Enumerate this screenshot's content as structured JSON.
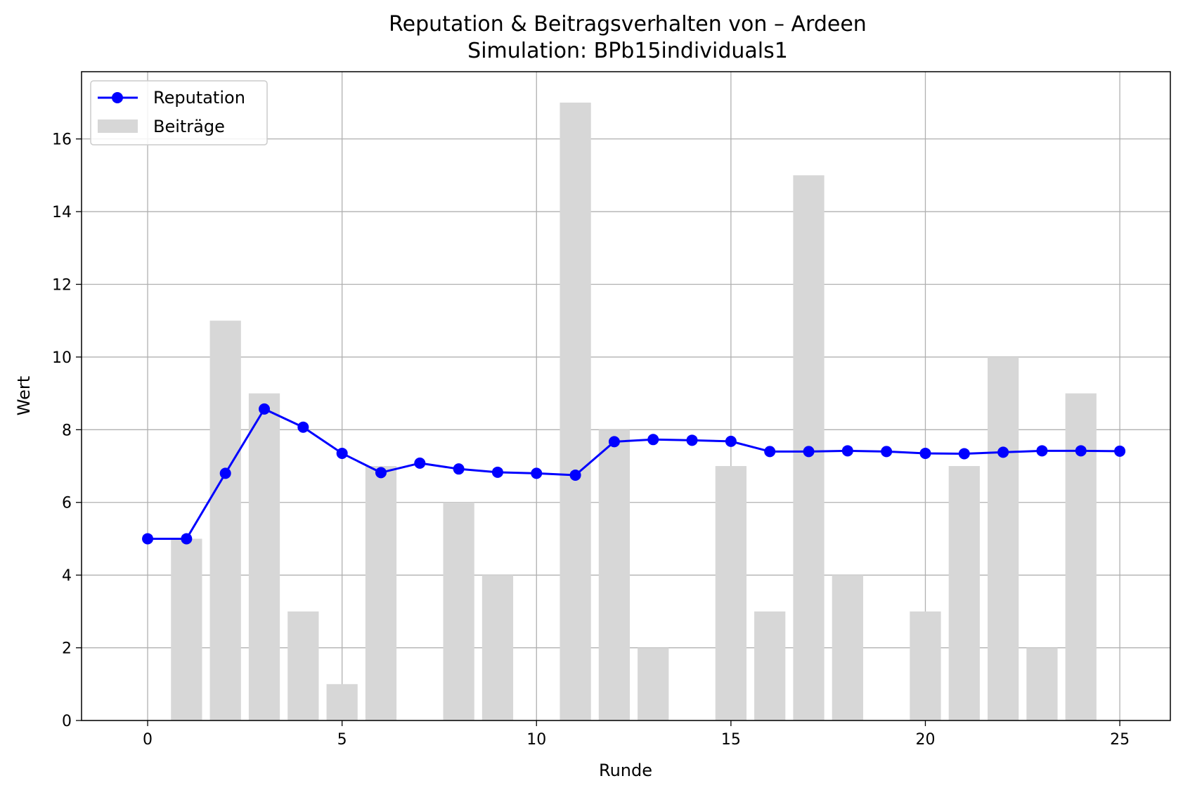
{
  "chart_data": {
    "type": "bar+line",
    "title": "Reputation & Beitragsverhalten von – Ardeen",
    "subtitle": "Simulation: BPb15individuals1",
    "xlabel": "Runde",
    "ylabel": "Wert",
    "xlim": [
      -1.7,
      26.3
    ],
    "ylim": [
      0,
      17.85
    ],
    "x_ticks": [
      0,
      5,
      10,
      15,
      20,
      25
    ],
    "y_ticks": [
      0,
      2,
      4,
      6,
      8,
      10,
      12,
      14,
      16
    ],
    "grid": true,
    "legend_position": "top-left",
    "series": [
      {
        "name": "Reputation",
        "kind": "line",
        "color": "#0000ff",
        "x": [
          0,
          1,
          2,
          3,
          4,
          5,
          6,
          7,
          8,
          9,
          10,
          11,
          12,
          13,
          14,
          15,
          16,
          17,
          18,
          19,
          20,
          21,
          22,
          23,
          24,
          25
        ],
        "values": [
          5.0,
          5.0,
          6.8,
          8.57,
          8.07,
          7.35,
          6.82,
          7.08,
          6.92,
          6.83,
          6.8,
          6.75,
          7.67,
          7.73,
          7.71,
          7.68,
          7.4,
          7.4,
          7.42,
          7.4,
          7.35,
          7.34,
          7.38,
          7.42,
          7.42,
          7.41
        ]
      },
      {
        "name": "Beiträge",
        "kind": "bar",
        "color": "#d7d7d7",
        "x": [
          1,
          2,
          3,
          4,
          5,
          6,
          8,
          9,
          11,
          12,
          13,
          15,
          16,
          17,
          18,
          20,
          21,
          22,
          23,
          24
        ],
        "values": [
          5,
          11,
          9,
          3,
          1,
          7,
          6,
          4,
          17,
          8,
          2,
          7,
          3,
          15,
          4,
          3,
          7,
          10,
          2,
          9
        ]
      }
    ]
  }
}
